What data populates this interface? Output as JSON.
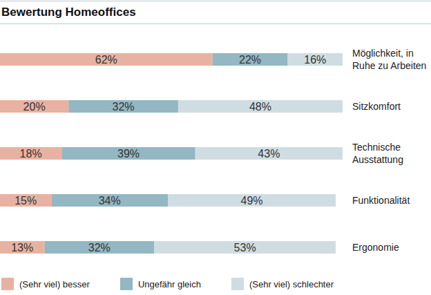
{
  "chart_data": {
    "type": "bar",
    "title": "Bewertung Homeoffices",
    "orientation": "horizontal",
    "stacked": true,
    "data_labels": true,
    "tick_labels": "y",
    "xlim": [
      0,
      100
    ],
    "categories": [
      "Möglichkeit, in Ruhe zu Arbeiten",
      "Sitzkomfort",
      "Technische Ausstattung",
      "Funktionalität",
      "Ergonomie"
    ],
    "series": [
      {
        "name": "(Sehr viel) besser",
        "color": "#e8b2a2",
        "values": [
          62,
          20,
          18,
          15,
          13
        ],
        "value_labels": [
          "62%",
          "20%",
          "18%",
          "15%",
          "13%"
        ]
      },
      {
        "name": "Ungefähr gleich",
        "color": "#93b7c3",
        "values": [
          22,
          32,
          39,
          34,
          32
        ],
        "value_labels": [
          "22%",
          "32%",
          "39%",
          "34%",
          "32%"
        ]
      },
      {
        "name": "(Sehr viel) schlechter",
        "color": "#cfdde3",
        "values": [
          16,
          48,
          43,
          49,
          53
        ],
        "value_labels": [
          "16%",
          "48%",
          "43%",
          "49%",
          "53%"
        ]
      }
    ],
    "legend": "bottom"
  }
}
